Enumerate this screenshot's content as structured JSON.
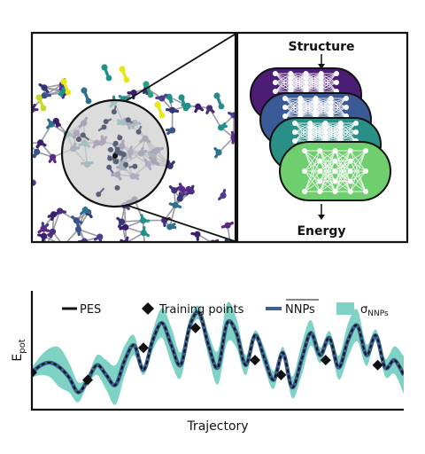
{
  "diagram": {
    "structure_label": "Structure",
    "energy_label": "Energy",
    "network_colors": [
      "#4b1d74",
      "#3a5a96",
      "#2a8f86",
      "#6fcf6f"
    ]
  },
  "chart_data": {
    "type": "line",
    "xlabel": "Trajectory",
    "ylabel": "E",
    "ylabel_sub": "pot",
    "legend_placement": "top",
    "legend": {
      "pes": "PES",
      "training": "Training points",
      "nnps_mean": "NNPs",
      "sigma": "σ",
      "sigma_sub": "NNPs"
    },
    "colors": {
      "pes": "#111111",
      "mean": "#3b5f8f",
      "band": "#7fd3c4",
      "training": "#111111"
    },
    "x_range": [
      0,
      100
    ],
    "y_range": [
      -1.2,
      1.2
    ],
    "series": [
      {
        "name": "PES",
        "x": [
          0,
          2.5,
          5,
          7.5,
          10,
          12.5,
          15,
          17.5,
          20,
          22.5,
          25,
          27.5,
          30,
          32.5,
          35,
          37.5,
          40,
          42.5,
          45,
          47.5,
          50,
          52.5,
          55,
          57.5,
          60,
          62.5,
          65,
          67.5,
          70,
          72.5,
          75,
          77.5,
          80,
          82.5,
          85,
          87.5,
          90,
          92.5,
          95,
          97.5,
          100
        ],
        "values": [
          -0.45,
          -0.3,
          -0.25,
          -0.35,
          -0.55,
          -0.85,
          -0.6,
          -0.3,
          -0.5,
          -0.7,
          -0.2,
          0.1,
          -0.4,
          0.2,
          0.55,
          0.1,
          -0.3,
          0.5,
          0.75,
          0.1,
          -0.35,
          0.55,
          0.35,
          -0.3,
          0.3,
          -0.15,
          -0.6,
          -0.05,
          -0.75,
          -0.2,
          0.35,
          -0.1,
          0.25,
          -0.35,
          0.2,
          0.5,
          -0.1,
          0.3,
          -0.35,
          -0.2,
          -0.5
        ]
      }
    ],
    "training_points": {
      "x": [
        0,
        15,
        30,
        44,
        60,
        67,
        79,
        93
      ],
      "values": [
        -0.45,
        -0.6,
        0.05,
        0.45,
        -0.2,
        -0.5,
        -0.2,
        -0.3
      ]
    }
  }
}
